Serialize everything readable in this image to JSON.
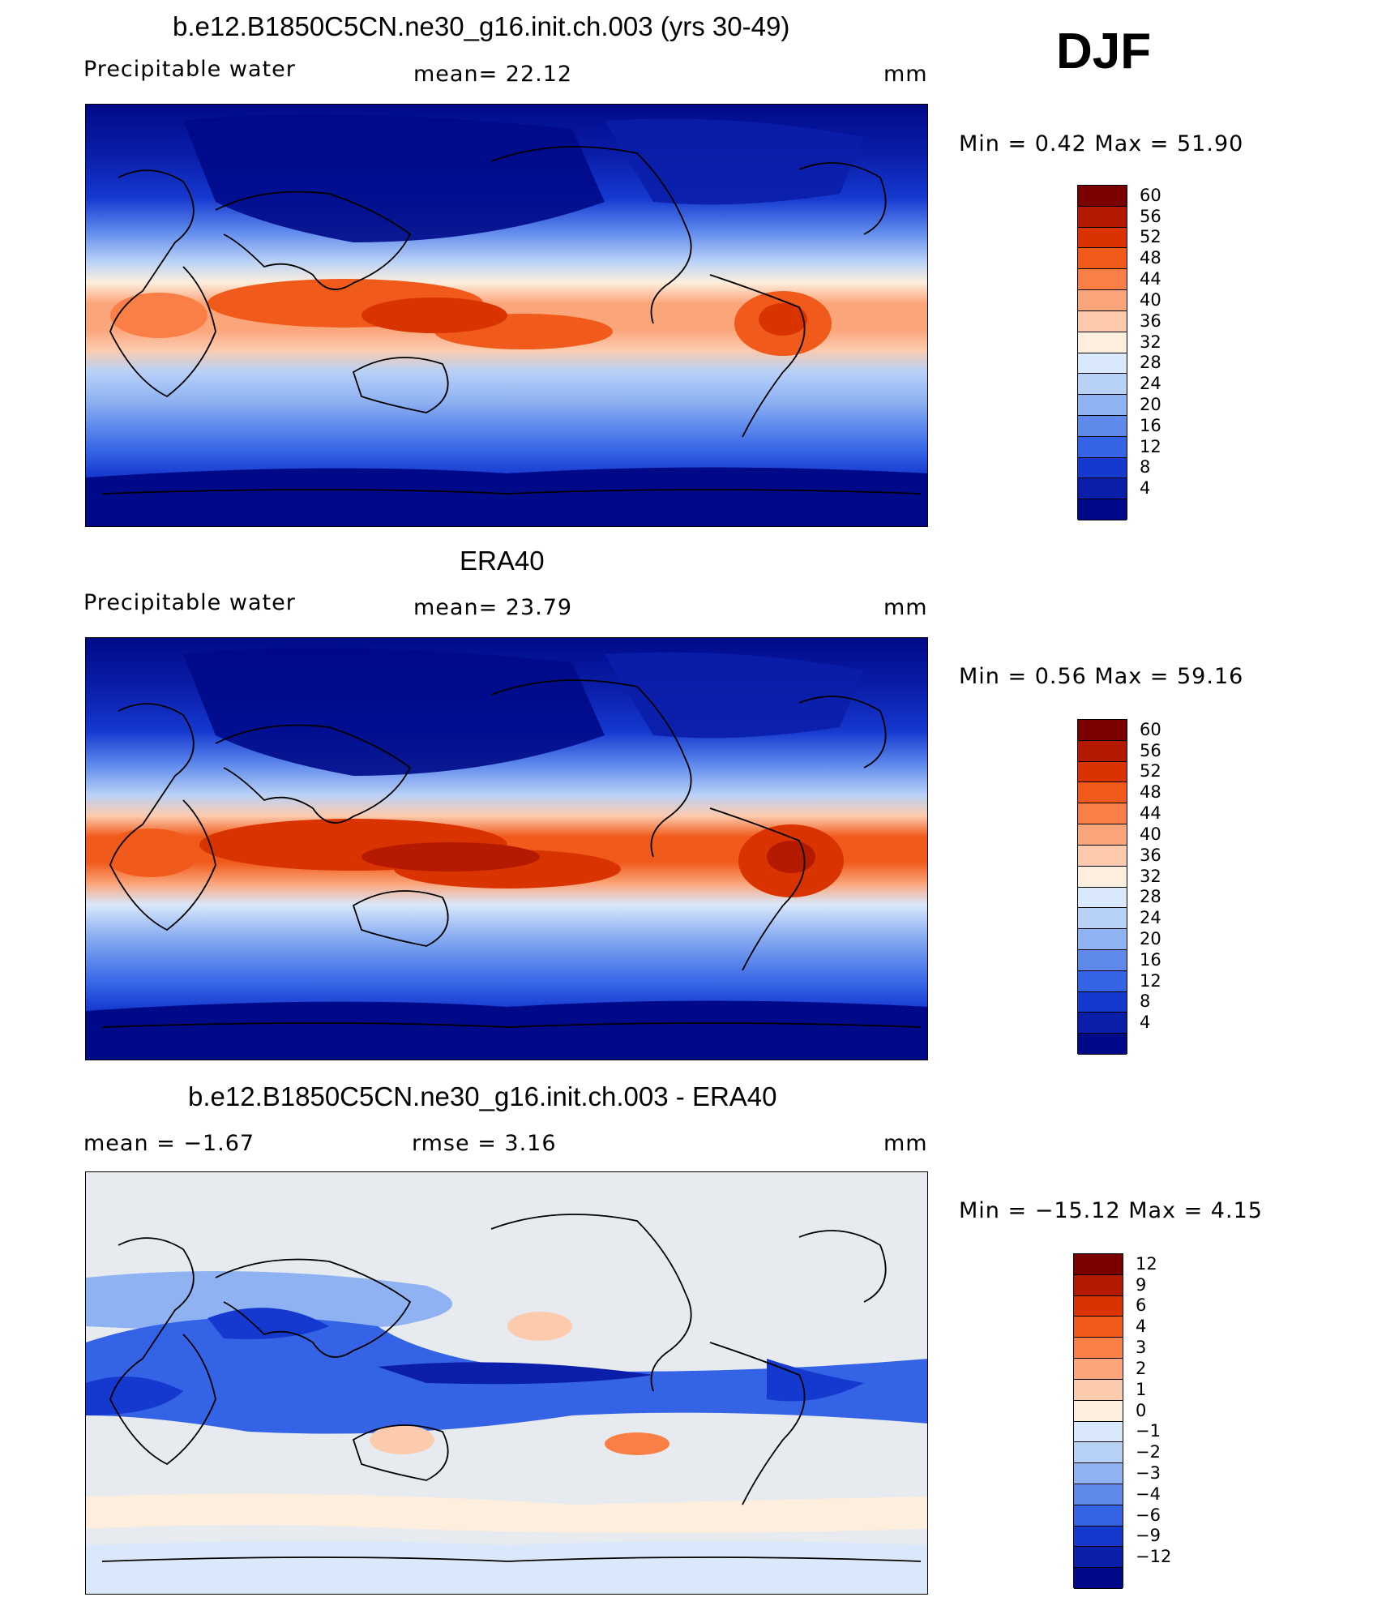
{
  "season": "DJF",
  "panels": [
    {
      "title": "b.e12.B1850C5CN.ne30_g16.init.ch.003 (yrs 30-49)",
      "left_label": "Precipitable  water",
      "center_label": "mean=   22.12",
      "units": "mm",
      "minmax": "Min  =    0.42  Max  =    51.90",
      "kind": "abs"
    },
    {
      "title": "ERA40",
      "left_label": "Precipitable  water",
      "center_label": "mean=   23.79",
      "units": "mm",
      "minmax": "Min  =    0.56  Max  =    59.16",
      "kind": "abs"
    },
    {
      "title": "b.e12.B1850C5CN.ne30_g16.init.ch.003 - ERA40",
      "left_label": "mean  =    −1.67",
      "center_label": "rmse  =      3.16",
      "units": "mm",
      "minmax": "Min  = −15.12  Max  =      4.15",
      "kind": "diff"
    }
  ],
  "colorbars": {
    "abs": {
      "levels": [
        "60",
        "56",
        "52",
        "48",
        "44",
        "40",
        "36",
        "32",
        "28",
        "24",
        "20",
        "16",
        "12",
        "8",
        "4"
      ],
      "colors": [
        "#7a0000",
        "#b31a00",
        "#d93300",
        "#f05a1a",
        "#fa7f46",
        "#fba57a",
        "#fccbae",
        "#fdeedd",
        "#d9e8fb",
        "#b8d1f7",
        "#8fb2f2",
        "#5f8aec",
        "#3563e5",
        "#1538cf",
        "#0a1eaa",
        "#000a88"
      ]
    },
    "diff": {
      "levels": [
        "12",
        "9",
        "6",
        "4",
        "3",
        "2",
        "1",
        "0",
        "−1",
        "−2",
        "−3",
        "−4",
        "−6",
        "−9",
        "−12"
      ],
      "colors": [
        "#7a0000",
        "#b31a00",
        "#d93300",
        "#f05a1a",
        "#fa7f46",
        "#fba57a",
        "#fccbae",
        "#fdeedd",
        "#d9e8fb",
        "#b8d1f7",
        "#8fb2f2",
        "#5f8aec",
        "#3563e5",
        "#1538cf",
        "#0a1eaa",
        "#000a88"
      ]
    }
  }
}
